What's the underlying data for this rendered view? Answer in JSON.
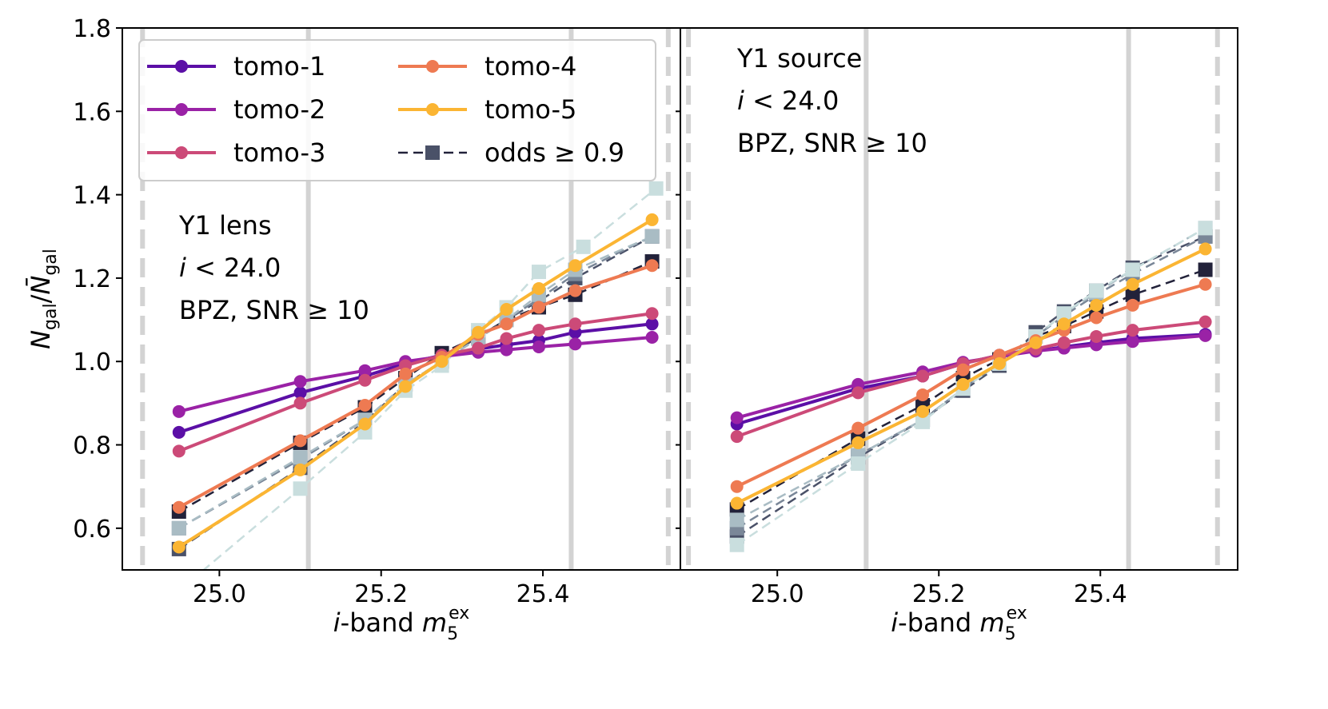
{
  "colors": {
    "tomo-1": "#5b0fa6",
    "tomo-2": "#9a22a6",
    "tomo-3": "#cc4a78",
    "tomo-4": "#ee7a52",
    "tomo-5": "#fbb533",
    "vline_solid": "#d3d3d3",
    "vline_dashed": "#d3d3d3",
    "odds": [
      "#22223a",
      "#4a5168",
      "#7a8798",
      "#a9bcc4",
      "#c9dede"
    ]
  },
  "chart_data": [
    {
      "type": "line",
      "panel": "left",
      "annotation": [
        "Y1 lens",
        "i < 24.0",
        "BPZ, SNR ≥ 10"
      ],
      "ylabel": "N_gal/N̄_gal",
      "xlabel": "i-band m5ex",
      "xlim": [
        24.88,
        25.57
      ],
      "ylim": [
        0.5,
        1.8
      ],
      "xticks": [
        "25.0",
        "25.2",
        "25.4"
      ],
      "yticks": [
        "0.6",
        "0.8",
        "1.0",
        "1.2",
        "1.4",
        "1.6",
        "1.8"
      ],
      "vlines_solid": [
        25.11,
        25.435
      ],
      "vlines_dashed": [
        24.905,
        25.555
      ],
      "x": [
        24.95,
        25.1,
        25.18,
        25.23,
        25.275,
        25.32,
        25.355,
        25.395,
        25.44,
        25.535
      ],
      "series": [
        {
          "name": "tomo-1",
          "values": [
            0.83,
            0.925,
            0.965,
            0.995,
            1.015,
            1.03,
            1.04,
            1.05,
            1.07,
            1.09
          ]
        },
        {
          "name": "tomo-2",
          "values": [
            0.88,
            0.952,
            0.978,
            1.0,
            1.012,
            1.022,
            1.028,
            1.035,
            1.042,
            1.058
          ]
        },
        {
          "name": "tomo-3",
          "values": [
            0.785,
            0.9,
            0.955,
            0.99,
            1.015,
            1.032,
            1.055,
            1.075,
            1.09,
            1.115
          ]
        },
        {
          "name": "tomo-4",
          "values": [
            0.65,
            0.81,
            0.895,
            0.97,
            1.01,
            1.065,
            1.09,
            1.13,
            1.17,
            1.23
          ]
        },
        {
          "name": "tomo-5",
          "values": [
            0.555,
            0.74,
            0.85,
            0.94,
            1.0,
            1.07,
            1.125,
            1.175,
            1.23,
            1.34
          ]
        }
      ],
      "odds_series": [
        {
          "values": [
            0.64,
            0.805,
            0.89,
            0.96,
            1.02,
            1.06,
            1.1,
            1.13,
            1.16,
            1.24
          ]
        },
        {
          "values": [
            0.55,
            0.745,
            0.855,
            0.945,
            1.0,
            1.06,
            1.1,
            1.145,
            1.2,
            1.3
          ]
        },
        {
          "values": [
            0.6,
            0.765,
            0.86,
            0.945,
            1.0,
            1.055,
            1.1,
            1.15,
            1.21,
            1.3
          ]
        },
        {
          "values": [
            0.6,
            0.77,
            0.86,
            0.945,
            1.0,
            1.055,
            1.1,
            1.16,
            1.22,
            1.3
          ]
        },
        {
          "x": [
            24.95,
            25.1,
            25.18,
            25.23,
            25.275,
            25.32,
            25.355,
            25.395,
            25.45,
            25.54
          ],
          "values": [
            0.45,
            0.695,
            0.83,
            0.93,
            0.99,
            1.075,
            1.13,
            1.215,
            1.275,
            1.415
          ]
        }
      ]
    },
    {
      "type": "line",
      "panel": "right",
      "annotation": [
        "Y1 source",
        "i < 24.0",
        "BPZ, SNR ≥ 10"
      ],
      "xlabel": "i-band m5ex",
      "xlim": [
        24.88,
        25.57
      ],
      "ylim": [
        0.5,
        1.8
      ],
      "xticks": [
        "25.0",
        "25.2",
        "25.4"
      ],
      "vlines_solid": [
        25.11,
        25.435
      ],
      "vlines_dashed": [
        24.89,
        25.545
      ],
      "x": [
        24.95,
        25.1,
        25.18,
        25.23,
        25.275,
        25.32,
        25.355,
        25.395,
        25.44,
        25.53
      ],
      "series": [
        {
          "name": "tomo-1",
          "values": [
            0.85,
            0.935,
            0.965,
            0.995,
            1.015,
            1.025,
            1.035,
            1.045,
            1.055,
            1.065
          ]
        },
        {
          "name": "tomo-2",
          "values": [
            0.865,
            0.945,
            0.975,
            0.998,
            1.012,
            1.025,
            1.032,
            1.04,
            1.048,
            1.062
          ]
        },
        {
          "name": "tomo-3",
          "values": [
            0.82,
            0.925,
            0.965,
            0.995,
            1.015,
            1.03,
            1.045,
            1.06,
            1.075,
            1.095
          ]
        },
        {
          "name": "tomo-4",
          "values": [
            0.7,
            0.84,
            0.92,
            0.98,
            1.015,
            1.05,
            1.075,
            1.105,
            1.135,
            1.185
          ]
        },
        {
          "name": "tomo-5",
          "values": [
            0.66,
            0.805,
            0.88,
            0.945,
            0.995,
            1.045,
            1.09,
            1.135,
            1.185,
            1.27
          ]
        }
      ],
      "odds_series": [
        {
          "values": [
            0.645,
            0.815,
            0.895,
            0.96,
            1.005,
            1.06,
            1.085,
            1.12,
            1.16,
            1.22
          ]
        },
        {
          "values": [
            0.58,
            0.77,
            0.86,
            0.93,
            0.99,
            1.07,
            1.12,
            1.17,
            1.225,
            1.3
          ]
        },
        {
          "values": [
            0.6,
            0.775,
            0.86,
            0.935,
            0.995,
            1.06,
            1.11,
            1.16,
            1.21,
            1.3
          ]
        },
        {
          "values": [
            0.62,
            0.775,
            0.86,
            0.935,
            0.995,
            1.06,
            1.115,
            1.165,
            1.22,
            1.32
          ]
        },
        {
          "values": [
            0.56,
            0.755,
            0.855,
            0.935,
            0.995,
            1.06,
            1.115,
            1.17,
            1.22,
            1.32
          ]
        }
      ]
    }
  ],
  "legend": {
    "placement": "top-left",
    "entries": [
      "tomo-1",
      "tomo-2",
      "tomo-3",
      "tomo-4",
      "tomo-5",
      "odds ≥ 0.9"
    ]
  }
}
